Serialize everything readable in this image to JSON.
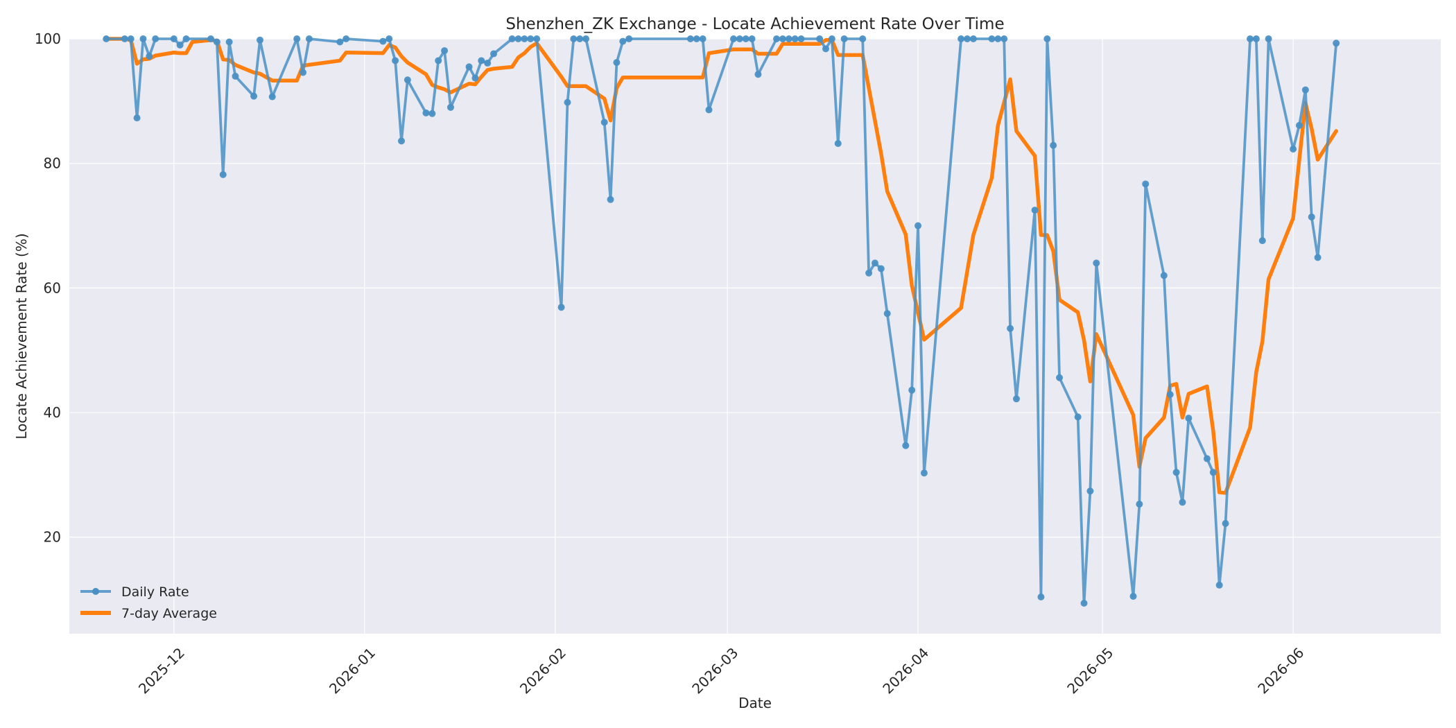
{
  "chart_data": {
    "type": "line",
    "title": "Shenzhen_ZK Exchange - Locate Achievement Rate Over Time",
    "xlabel": "Date",
    "ylabel": "Locate Achievement Rate (%)",
    "xlim": [
      "2025-11-14",
      "2026-06-25"
    ],
    "ylim": [
      4.5,
      100
    ],
    "x_ticks": [
      "2025-12",
      "2026-01",
      "2026-02",
      "2026-03",
      "2026-04",
      "2026-05",
      "2026-06"
    ],
    "y_ticks": [
      20,
      40,
      60,
      80,
      100
    ],
    "grid": true,
    "legend_position": "lower-left",
    "colors": {
      "daily": "#4a90c4",
      "avg": "#ff7f0e",
      "plot_bg": "#eaeaf2",
      "grid": "#ffffff"
    },
    "series": [
      {
        "name": "Daily Rate",
        "points": [
          [
            "2025-11-20",
            100
          ],
          [
            "2025-11-23",
            100
          ],
          [
            "2025-11-24",
            100
          ],
          [
            "2025-11-25",
            87.3
          ],
          [
            "2025-11-26",
            100
          ],
          [
            "2025-11-27",
            97.2
          ],
          [
            "2025-11-28",
            100
          ],
          [
            "2025-12-01",
            100
          ],
          [
            "2025-12-02",
            99
          ],
          [
            "2025-12-03",
            100
          ],
          [
            "2025-12-07",
            100
          ],
          [
            "2025-12-08",
            99.5
          ],
          [
            "2025-12-09",
            78.2
          ],
          [
            "2025-12-10",
            99.5
          ],
          [
            "2025-12-11",
            94
          ],
          [
            "2025-12-14",
            90.8
          ],
          [
            "2025-12-15",
            99.8
          ],
          [
            "2025-12-17",
            90.7
          ],
          [
            "2025-12-21",
            100
          ],
          [
            "2025-12-22",
            94.6
          ],
          [
            "2025-12-23",
            100
          ],
          [
            "2025-12-28",
            99.5
          ],
          [
            "2025-12-29",
            100
          ],
          [
            "2026-01-04",
            99.6
          ],
          [
            "2026-01-05",
            100
          ],
          [
            "2026-01-06",
            96.5
          ],
          [
            "2026-01-07",
            83.6
          ],
          [
            "2026-01-08",
            93.4
          ],
          [
            "2026-01-11",
            88.1
          ],
          [
            "2026-01-12",
            88
          ],
          [
            "2026-01-13",
            96.5
          ],
          [
            "2026-01-14",
            98.1
          ],
          [
            "2026-01-15",
            89
          ],
          [
            "2026-01-18",
            95.5
          ],
          [
            "2026-01-19",
            93.7
          ],
          [
            "2026-01-20",
            96.5
          ],
          [
            "2026-01-21",
            96.1
          ],
          [
            "2026-01-22",
            97.6
          ],
          [
            "2026-01-25",
            100
          ],
          [
            "2026-01-26",
            100
          ],
          [
            "2026-01-27",
            100
          ],
          [
            "2026-01-28",
            100
          ],
          [
            "2026-01-29",
            100
          ],
          [
            "2026-02-02",
            56.9
          ],
          [
            "2026-02-03",
            89.8
          ],
          [
            "2026-02-04",
            100
          ],
          [
            "2026-02-05",
            100
          ],
          [
            "2026-02-06",
            100
          ],
          [
            "2026-02-09",
            86.6
          ],
          [
            "2026-02-10",
            74.2
          ],
          [
            "2026-02-11",
            96.2
          ],
          [
            "2026-02-12",
            99.6
          ],
          [
            "2026-02-13",
            100
          ],
          [
            "2026-02-23",
            100
          ],
          [
            "2026-02-24",
            100
          ],
          [
            "2026-02-25",
            100
          ],
          [
            "2026-02-26",
            88.6
          ],
          [
            "2026-03-02",
            100
          ],
          [
            "2026-03-03",
            100
          ],
          [
            "2026-03-04",
            100
          ],
          [
            "2026-03-05",
            100
          ],
          [
            "2026-03-06",
            94.3
          ],
          [
            "2026-03-09",
            100
          ],
          [
            "2026-03-10",
            100
          ],
          [
            "2026-03-11",
            100
          ],
          [
            "2026-03-12",
            100
          ],
          [
            "2026-03-13",
            100
          ],
          [
            "2026-03-16",
            100
          ],
          [
            "2026-03-17",
            98.4
          ],
          [
            "2026-03-18",
            100
          ],
          [
            "2026-03-19",
            83.2
          ],
          [
            "2026-03-20",
            100
          ],
          [
            "2026-03-23",
            100
          ],
          [
            "2026-03-24",
            62.4
          ],
          [
            "2026-03-25",
            64
          ],
          [
            "2026-03-26",
            63.1
          ],
          [
            "2026-03-27",
            55.9
          ],
          [
            "2026-03-30",
            34.7
          ],
          [
            "2026-03-31",
            43.6
          ],
          [
            "2026-04-01",
            70
          ],
          [
            "2026-04-02",
            30.3
          ],
          [
            "2026-04-08",
            100
          ],
          [
            "2026-04-09",
            100
          ],
          [
            "2026-04-10",
            100
          ],
          [
            "2026-04-13",
            100
          ],
          [
            "2026-04-14",
            100
          ],
          [
            "2026-04-15",
            100
          ],
          [
            "2026-04-16",
            53.5
          ],
          [
            "2026-04-17",
            42.2
          ],
          [
            "2026-04-20",
            72.5
          ],
          [
            "2026-04-21",
            10.4
          ],
          [
            "2026-04-22",
            100
          ],
          [
            "2026-04-23",
            82.9
          ],
          [
            "2026-04-24",
            45.6
          ],
          [
            "2026-04-27",
            39.3
          ],
          [
            "2026-04-28",
            9.4
          ],
          [
            "2026-04-29",
            27.4
          ],
          [
            "2026-04-30",
            64
          ],
          [
            "2026-05-06",
            10.5
          ],
          [
            "2026-05-07",
            25.3
          ],
          [
            "2026-05-08",
            76.7
          ],
          [
            "2026-05-11",
            62
          ],
          [
            "2026-05-12",
            42.9
          ],
          [
            "2026-05-13",
            30.4
          ],
          [
            "2026-05-14",
            25.6
          ],
          [
            "2026-05-15",
            39.1
          ],
          [
            "2026-05-18",
            32.6
          ],
          [
            "2026-05-19",
            30.4
          ],
          [
            "2026-05-20",
            12.3
          ],
          [
            "2026-05-21",
            22.2
          ],
          [
            "2026-05-25",
            100
          ],
          [
            "2026-05-26",
            100
          ],
          [
            "2026-05-27",
            67.6
          ],
          [
            "2026-05-28",
            100
          ],
          [
            "2026-06-01",
            82.3
          ],
          [
            "2026-06-02",
            86.1
          ],
          [
            "2026-06-03",
            91.8
          ],
          [
            "2026-06-04",
            71.4
          ],
          [
            "2026-06-05",
            64.9
          ],
          [
            "2026-06-08",
            99.3
          ]
        ]
      },
      {
        "name": "7-day Average",
        "points": [
          [
            "2025-11-20",
            100
          ],
          [
            "2025-11-23",
            100
          ],
          [
            "2025-11-24",
            99.8
          ],
          [
            "2025-11-25",
            96
          ],
          [
            "2025-11-26",
            96.7
          ],
          [
            "2025-11-27",
            96.8
          ],
          [
            "2025-11-28",
            97.3
          ],
          [
            "2025-12-01",
            97.8
          ],
          [
            "2025-12-02",
            97.7
          ],
          [
            "2025-12-03",
            97.7
          ],
          [
            "2025-12-04",
            99.5
          ],
          [
            "2025-12-07",
            99.8
          ],
          [
            "2025-12-08",
            99.7
          ],
          [
            "2025-12-09",
            96.7
          ],
          [
            "2025-12-10",
            96.6
          ],
          [
            "2025-12-11",
            95.8
          ],
          [
            "2025-12-14",
            94.6
          ],
          [
            "2025-12-15",
            94.4
          ],
          [
            "2025-12-17",
            93.3
          ],
          [
            "2025-12-21",
            93.3
          ],
          [
            "2025-12-22",
            95.7
          ],
          [
            "2025-12-28",
            96.5
          ],
          [
            "2025-12-29",
            97.8
          ],
          [
            "2026-01-04",
            97.7
          ],
          [
            "2026-01-05",
            99
          ],
          [
            "2026-01-06",
            98.6
          ],
          [
            "2026-01-07",
            97.2
          ],
          [
            "2026-01-08",
            96.2
          ],
          [
            "2026-01-11",
            94.3
          ],
          [
            "2026-01-12",
            92.6
          ],
          [
            "2026-01-13",
            92.2
          ],
          [
            "2026-01-14",
            91.9
          ],
          [
            "2026-01-15",
            91.4
          ],
          [
            "2026-01-18",
            92.8
          ],
          [
            "2026-01-19",
            92.7
          ],
          [
            "2026-01-20",
            93.9
          ],
          [
            "2026-01-21",
            95
          ],
          [
            "2026-01-22",
            95.2
          ],
          [
            "2026-01-25",
            95.5
          ],
          [
            "2026-01-26",
            97
          ],
          [
            "2026-01-27",
            97.7
          ],
          [
            "2026-01-28",
            98.7
          ],
          [
            "2026-01-29",
            99.3
          ],
          [
            "2026-02-02",
            93.9
          ],
          [
            "2026-02-03",
            92.4
          ],
          [
            "2026-02-06",
            92.4
          ],
          [
            "2026-02-09",
            90.4
          ],
          [
            "2026-02-10",
            86.9
          ],
          [
            "2026-02-11",
            92.1
          ],
          [
            "2026-02-12",
            93.8
          ],
          [
            "2026-02-25",
            93.8
          ],
          [
            "2026-02-26",
            97.7
          ],
          [
            "2026-03-02",
            98.3
          ],
          [
            "2026-03-05",
            98.3
          ],
          [
            "2026-03-06",
            97.6
          ],
          [
            "2026-03-09",
            97.6
          ],
          [
            "2026-03-10",
            99.2
          ],
          [
            "2026-03-16",
            99.2
          ],
          [
            "2026-03-17",
            99.8
          ],
          [
            "2026-03-18",
            99.8
          ],
          [
            "2026-03-19",
            97.4
          ],
          [
            "2026-03-23",
            97.4
          ],
          [
            "2026-03-26",
            81.6
          ],
          [
            "2026-03-27",
            75.5
          ],
          [
            "2026-03-30",
            68.6
          ],
          [
            "2026-03-31",
            60.4
          ],
          [
            "2026-04-02",
            51.7
          ],
          [
            "2026-04-08",
            56.8
          ],
          [
            "2026-04-10",
            68.5
          ],
          [
            "2026-04-13",
            77.7
          ],
          [
            "2026-04-14",
            86.1
          ],
          [
            "2026-04-16",
            93.5
          ],
          [
            "2026-04-17",
            85.2
          ],
          [
            "2026-04-20",
            81.2
          ],
          [
            "2026-04-21",
            68.5
          ],
          [
            "2026-04-22",
            68.5
          ],
          [
            "2026-04-23",
            65.9
          ],
          [
            "2026-04-24",
            58.1
          ],
          [
            "2026-04-27",
            56.1
          ],
          [
            "2026-04-28",
            51.6
          ],
          [
            "2026-04-29",
            45
          ],
          [
            "2026-04-30",
            52.6
          ],
          [
            "2026-05-06",
            39.6
          ],
          [
            "2026-05-07",
            31.3
          ],
          [
            "2026-05-08",
            35.9
          ],
          [
            "2026-05-11",
            39.2
          ],
          [
            "2026-05-12",
            44.3
          ],
          [
            "2026-05-13",
            44.6
          ],
          [
            "2026-05-14",
            39.2
          ],
          [
            "2026-05-15",
            43
          ],
          [
            "2026-05-18",
            44.2
          ],
          [
            "2026-05-19",
            37.1
          ],
          [
            "2026-05-20",
            27.2
          ],
          [
            "2026-05-21",
            27.1
          ],
          [
            "2026-05-25",
            37.6
          ],
          [
            "2026-05-26",
            46.5
          ],
          [
            "2026-05-27",
            51.4
          ],
          [
            "2026-05-28",
            61.4
          ],
          [
            "2026-06-01",
            71.2
          ],
          [
            "2026-06-02",
            80.6
          ],
          [
            "2026-06-03",
            89.7
          ],
          [
            "2026-06-04",
            85.6
          ],
          [
            "2026-06-05",
            80.6
          ],
          [
            "2026-06-08",
            85.2
          ]
        ]
      }
    ]
  }
}
